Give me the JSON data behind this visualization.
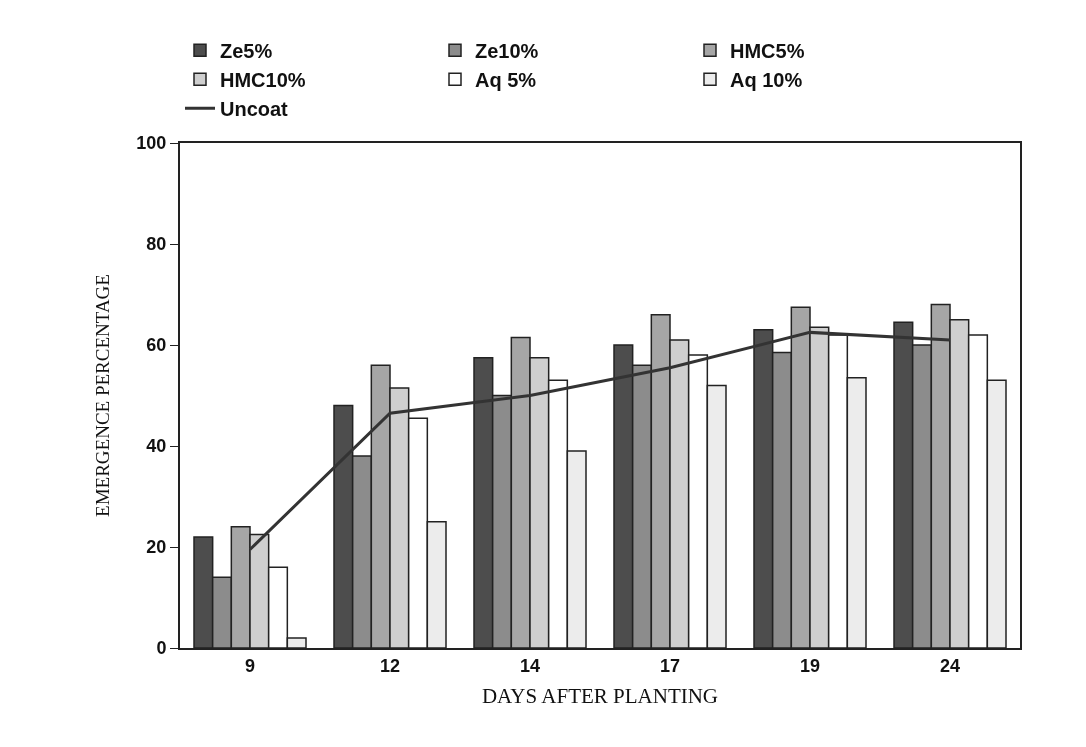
{
  "chart_data": {
    "type": "bar",
    "xlabel": "DAYS AFTER PLANTING",
    "ylabel": "EMERGENCE PERCENTAGE",
    "categories": [
      "9",
      "12",
      "14",
      "17",
      "19",
      "24"
    ],
    "series": [
      {
        "name": "Ze5%",
        "color": "#4d4d4d",
        "values": [
          22,
          48,
          57.5,
          60,
          63,
          64.5
        ]
      },
      {
        "name": "Ze10%",
        "color": "#8c8c8c",
        "values": [
          14,
          38,
          50,
          56,
          58.5,
          60
        ]
      },
      {
        "name": "HMC5%",
        "color": "#a6a6a6",
        "values": [
          24,
          56,
          61.5,
          66,
          67.5,
          68
        ]
      },
      {
        "name": "HMC10%",
        "color": "#cfcfcf",
        "values": [
          22.5,
          51.5,
          57.5,
          61,
          63.5,
          65
        ]
      },
      {
        "name": "Aq 5%",
        "color": "#ffffff",
        "values": [
          16,
          45.5,
          53,
          58,
          62,
          62
        ]
      },
      {
        "name": "Aq 10%",
        "color": "#ececec",
        "values": [
          2,
          25,
          39,
          52,
          53.5,
          53
        ]
      },
      {
        "name": "Uncoat",
        "type": "line",
        "color": "#333333",
        "values": [
          19.5,
          46.5,
          50,
          55.5,
          62.5,
          61
        ]
      }
    ],
    "ylim": [
      0,
      100
    ],
    "yticks": [
      0,
      20,
      40,
      60,
      80,
      100
    ],
    "grid": false,
    "legend": "top",
    "marker": "none",
    "line_style": "solid"
  }
}
